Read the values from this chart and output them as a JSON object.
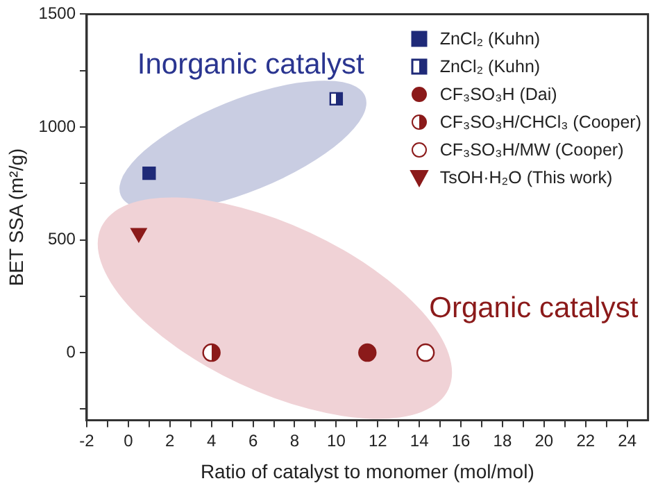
{
  "chart_data": {
    "type": "scatter",
    "xlabel": "Ratio of catalyst to monomer (mol/mol)",
    "ylabel": "BET SSA (m²/g)",
    "xlim": [
      -2,
      25
    ],
    "xticks": [
      -2,
      {
        "value": -1,
        "label": null
      },
      0,
      {
        "value": 1,
        "label": null
      },
      2,
      {
        "value": 3,
        "label": null
      },
      4,
      {
        "value": 5,
        "label": null
      },
      6,
      {
        "value": 7,
        "label": null
      },
      8,
      {
        "value": 9,
        "label": null
      },
      10,
      {
        "value": 11,
        "label": null
      },
      12,
      {
        "value": 13,
        "label": null
      },
      14,
      {
        "value": 15,
        "label": null
      },
      16,
      {
        "value": 17,
        "label": null
      },
      18,
      {
        "value": 19,
        "label": null
      },
      20,
      {
        "value": 21,
        "label": null
      },
      22,
      {
        "value": 23,
        "label": null
      },
      24
    ],
    "ylim": [
      -300,
      1500
    ],
    "yticks": [
      {
        "value": -250,
        "label": null
      },
      0,
      {
        "value": 250,
        "label": null
      },
      500,
      {
        "value": 750,
        "label": null
      },
      1000,
      {
        "value": 1250,
        "label": null
      },
      1500
    ],
    "grid": false,
    "legend": "top right",
    "annotations": [
      "Inorganic catalyst",
      "Organic catalyst"
    ],
    "series": [
      {
        "name": "ZnCl₂ (Kuhn)",
        "color": "#1f2a78",
        "marker": "square",
        "x": [
          1
        ],
        "values": [
          795
        ]
      },
      {
        "name": "ZnCl₂ (Kuhn)",
        "color": "#1f2a78",
        "marker": "square",
        "x": [
          10
        ],
        "values": [
          1125
        ]
      },
      {
        "name": "CF₃SO₃H (Dai)",
        "color": "#8b1a1a",
        "marker": "circle",
        "x": [
          11.5
        ],
        "values": [
          0
        ]
      },
      {
        "name": "CF₃SO₃H/CHCl₃ (Cooper)",
        "color": "#8b1a1a",
        "marker": "circle",
        "x": [
          4
        ],
        "values": [
          0
        ]
      },
      {
        "name": "CF₃SO₃H/MW (Cooper)",
        "color": "#8b1a1a",
        "marker": "circle",
        "x": [
          14.3
        ],
        "values": [
          0
        ]
      },
      {
        "name": "TsOH·H₂O (This work)",
        "color": "#8b1a1a",
        "marker": "triangle",
        "x": [
          0.5
        ],
        "values": [
          530
        ]
      }
    ]
  }
}
